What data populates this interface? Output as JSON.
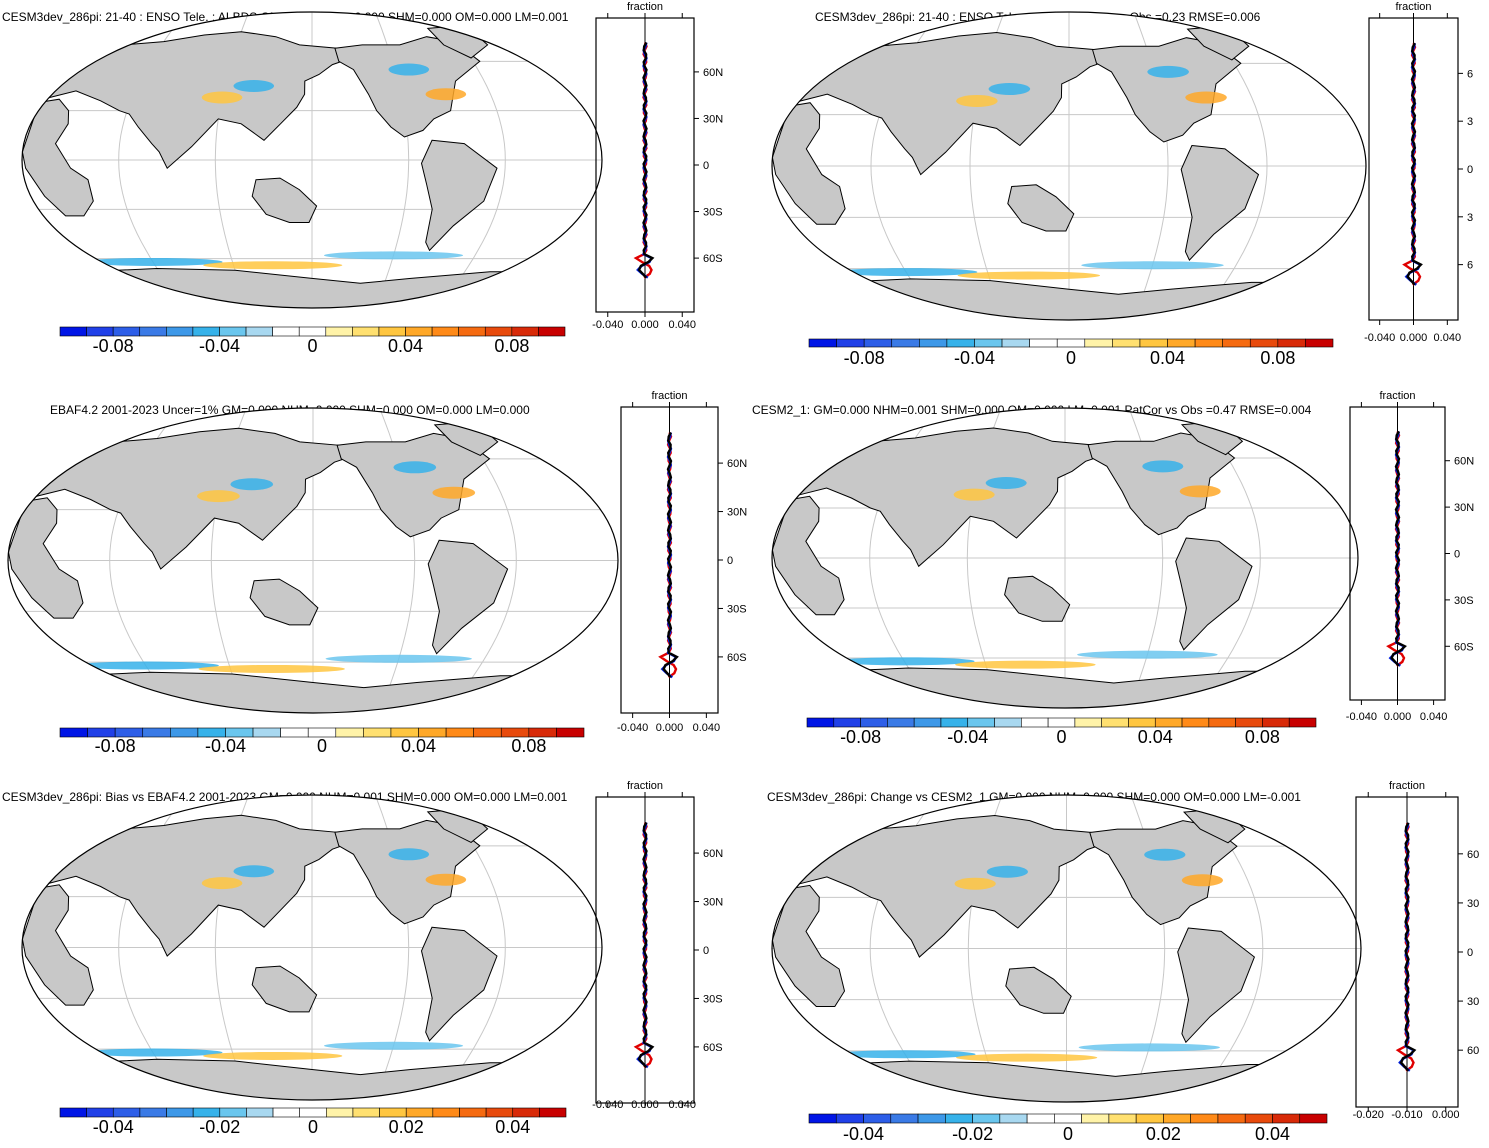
{
  "panels": [
    {
      "title": "CESM3dev_286pi: 21-40 : ENSO Tele. : ALBDS GM=0.000 NHM=0.000 SHM=0.000 OM=0.000 LM=0.001",
      "colorbar": [
        "-0.08",
        "-0.04",
        "0",
        "0.04",
        "0.08"
      ],
      "profile_ticks": [
        "-0.040",
        "0.000",
        "0.040"
      ],
      "profile_lat": [
        "60N",
        "30N",
        "0",
        "30S",
        "60S"
      ],
      "profile_label": "fraction"
    },
    {
      "title": "CESM3dev_286pi: 21-40 : ENSO Tele. : ALBDS PatCor vs Obs =0.23 RMSE=0.006",
      "colorbar": [
        "-0.08",
        "-0.04",
        "0",
        "0.04",
        "0.08"
      ],
      "profile_ticks": [
        "-0.040",
        "0.000",
        "0.040"
      ],
      "profile_lat": [
        "6",
        "3",
        "0",
        "3",
        "6"
      ],
      "profile_label": "fraction"
    },
    {
      "title": "EBAF4.2 2001-2023 Uncer=1% GM=0.000 NHM=0.000 SHM=0.000 OM=0.000 LM=0.000",
      "colorbar": [
        "-0.08",
        "-0.04",
        "0",
        "0.04",
        "0.08"
      ],
      "profile_ticks": [
        "-0.040",
        "0.000",
        "0.040"
      ],
      "profile_lat": [
        "60N",
        "30N",
        "0",
        "30S",
        "60S"
      ],
      "profile_label": "fraction"
    },
    {
      "title": "CESM2_1: GM=0.000 NHM=0.001 SHM=0.000 OM=0.000 LM=0.001 PatCor vs Obs =0.47 RMSE=0.004",
      "colorbar": [
        "-0.08",
        "-0.04",
        "0",
        "0.04",
        "0.08"
      ],
      "profile_ticks": [
        "-0.040",
        "0.000",
        "0.040"
      ],
      "profile_lat": [
        "60N",
        "30N",
        "0",
        "30S",
        "60S"
      ],
      "profile_label": "fraction"
    },
    {
      "title": "CESM3dev_286pi: Bias vs EBAF4.2 2001-2023 GM=0.000 NHM=0.001 SHM=0.000 OM=0.000 LM=0.001",
      "colorbar": [
        "-0.04",
        "-0.02",
        "0",
        "0.02",
        "0.04"
      ],
      "profile_ticks": [
        "-0.040",
        "0.000",
        "0.040"
      ],
      "profile_lat": [
        "60N",
        "30N",
        "0",
        "30S",
        "60S"
      ],
      "profile_label": "fraction"
    },
    {
      "title": "CESM3dev_286pi: Change vs CESM2_1 GM=0.000 NHM=0.000 SHM=0.000 OM=0.000 LM=-0.001",
      "colorbar": [
        "-0.04",
        "-0.02",
        "0",
        "0.02",
        "0.04"
      ],
      "profile_ticks": [
        "-0.020",
        "-0.010",
        "0.000"
      ],
      "profile_lat": [
        "60",
        "30",
        "0",
        "30",
        "60"
      ],
      "profile_label": "fraction"
    }
  ],
  "colors": {
    "land": "#c8c8c8",
    "coast": "#000000",
    "grid": "#c8c8c8",
    "profile_series": [
      "#e00000",
      "#0020e0",
      "#000000"
    ],
    "palette": [
      "#0015e6",
      "#2040e8",
      "#2d5ee8",
      "#3a7ae6",
      "#3d98e8",
      "#36b2ea",
      "#6ac6ee",
      "#a8d8f0",
      "#ffffff",
      "#ffffff",
      "#fff3a8",
      "#ffe070",
      "#ffc640",
      "#ffa828",
      "#ff8a18",
      "#f56a10",
      "#e84a0c",
      "#d82a08",
      "#c80000"
    ]
  }
}
